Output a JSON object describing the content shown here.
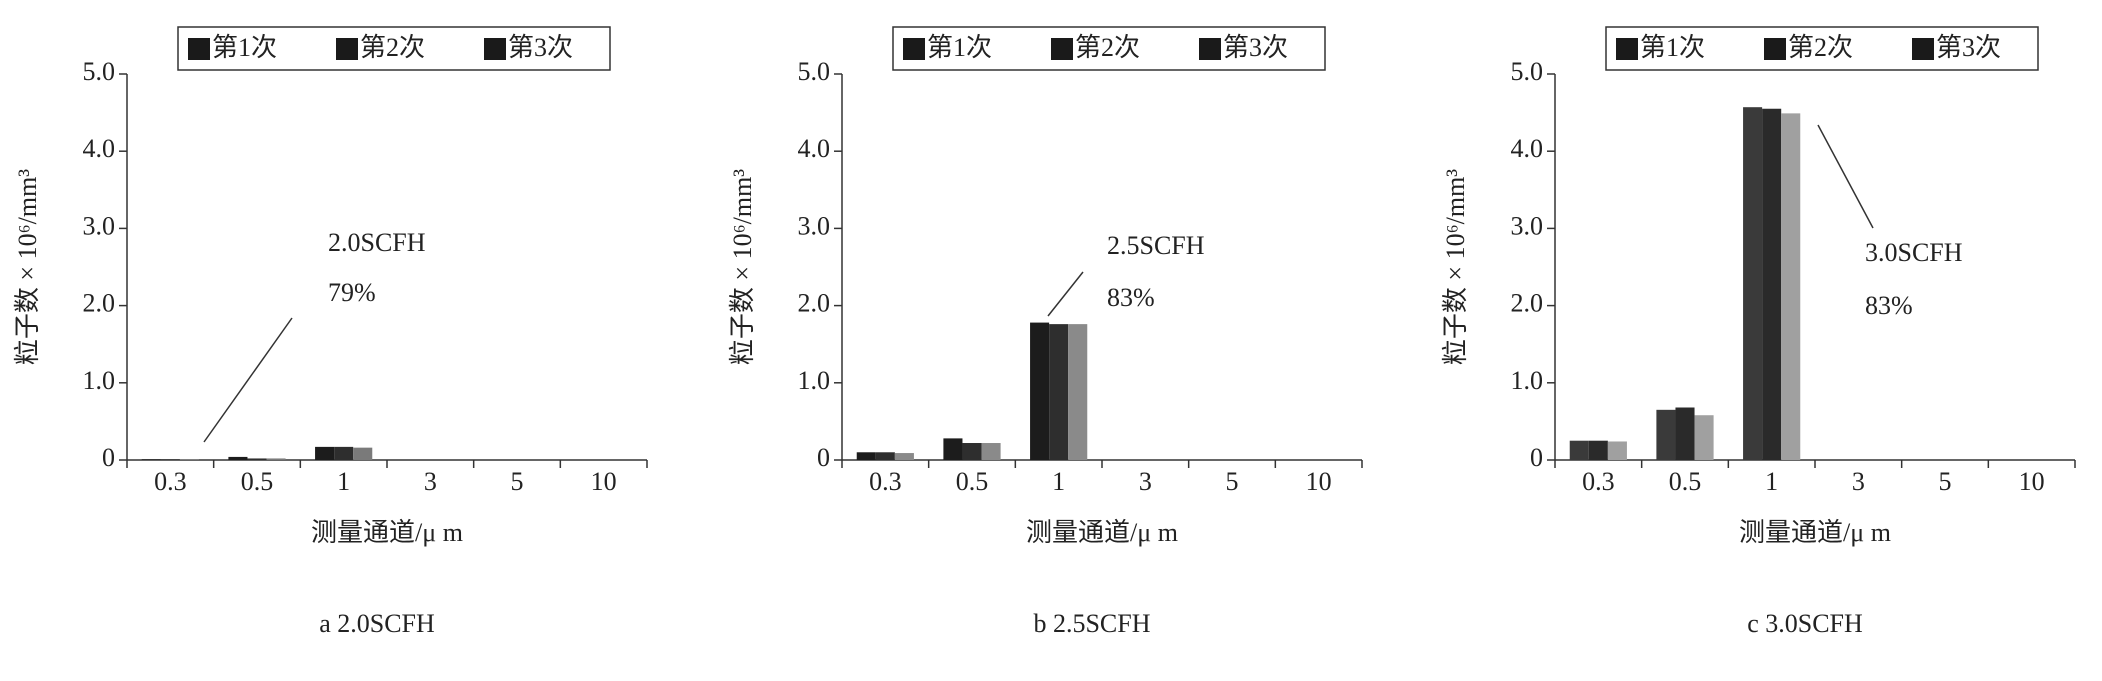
{
  "chart_data": [
    {
      "type": "bar",
      "caption": "a 2.0SCFH",
      "xlabel": "测量通道/μ m",
      "ylabel": "粒子数 × 10⁶/mm³",
      "categories": [
        "0.3",
        "0.5",
        "1",
        "3",
        "5",
        "10"
      ],
      "series": [
        {
          "name": "第1次",
          "color": "#1c1c1c",
          "values": [
            0.01,
            0.04,
            0.17,
            0,
            0,
            0
          ]
        },
        {
          "name": "第2次",
          "color": "#2e2e2e",
          "values": [
            0.01,
            0.02,
            0.17,
            0,
            0,
            0
          ]
        },
        {
          "name": "第3次",
          "color": "#7a7a7a",
          "values": [
            0.01,
            0.02,
            0.16,
            0,
            0,
            0
          ]
        }
      ],
      "ylim": [
        0,
        5
      ],
      "yticks": [
        0,
        {
          "value": 1,
          "label": "1.0"
        },
        {
          "value": 2,
          "label": "2.0"
        },
        {
          "value": 3,
          "label": "3.0"
        },
        {
          "value": 4,
          "label": "4.0"
        },
        {
          "value": 5,
          "label": "5.0"
        }
      ],
      "annotations": [
        "2.0SCFH",
        "79%"
      ]
    },
    {
      "type": "bar",
      "caption": "b 2.5SCFH",
      "xlabel": "测量通道/μ m",
      "ylabel": "粒子数 × 10⁶/mm³",
      "categories": [
        "0.3",
        "0.5",
        "1",
        "3",
        "5",
        "10"
      ],
      "series": [
        {
          "name": "第1次",
          "color": "#1c1c1c",
          "values": [
            0.1,
            0.28,
            1.78,
            0,
            0,
            0
          ]
        },
        {
          "name": "第2次",
          "color": "#2e2e2e",
          "values": [
            0.1,
            0.22,
            1.76,
            0,
            0,
            0
          ]
        },
        {
          "name": "第3次",
          "color": "#8a8a8a",
          "values": [
            0.09,
            0.22,
            1.76,
            0,
            0,
            0
          ]
        }
      ],
      "ylim": [
        0,
        5
      ],
      "yticks": [
        0,
        {
          "value": 1,
          "label": "1.0"
        },
        {
          "value": 2,
          "label": "2.0"
        },
        {
          "value": 3,
          "label": "3.0"
        },
        {
          "value": 4,
          "label": "4.0"
        },
        {
          "value": 5,
          "label": "5.0"
        }
      ],
      "annotations": [
        "2.5SCFH",
        "83%"
      ]
    },
    {
      "type": "bar",
      "caption": "c 3.0SCFH",
      "xlabel": "测量通道/μ m",
      "ylabel": "粒子数 × 10⁶/mm³",
      "categories": [
        "0.3",
        "0.5",
        "1",
        "3",
        "5",
        "10"
      ],
      "series": [
        {
          "name": "第1次",
          "color": "#3a3a3a",
          "values": [
            0.25,
            0.65,
            4.57,
            0,
            0,
            0
          ]
        },
        {
          "name": "第2次",
          "color": "#2a2a2a",
          "values": [
            0.25,
            0.68,
            4.55,
            0,
            0,
            0
          ]
        },
        {
          "name": "第3次",
          "color": "#a0a0a0",
          "values": [
            0.24,
            0.58,
            4.49,
            0,
            0,
            0
          ]
        }
      ],
      "ylim": [
        0,
        5
      ],
      "yticks": [
        0,
        {
          "value": 1,
          "label": "1.0"
        },
        {
          "value": 2,
          "label": "2.0"
        },
        {
          "value": 3,
          "label": "3.0"
        },
        {
          "value": 4,
          "label": "4.0"
        },
        {
          "value": 5,
          "label": "5.0"
        }
      ],
      "annotations": [
        "3.0SCFH",
        "83%"
      ]
    }
  ]
}
